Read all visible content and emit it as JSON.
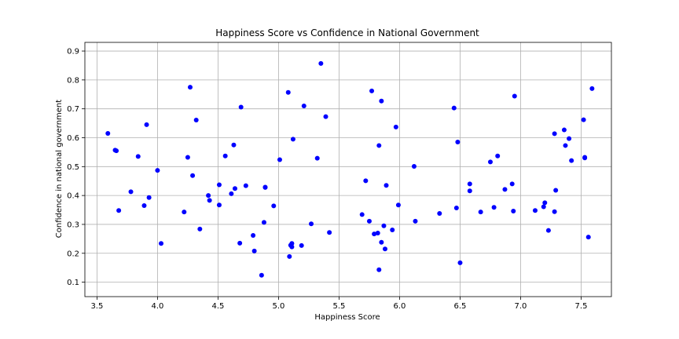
{
  "chart_data": {
    "type": "scatter",
    "title": "Happiness Score vs Confidence in National Government",
    "xlabel": "Happiness Score",
    "ylabel": "Confidence in national government",
    "xlim": [
      3.4,
      7.75
    ],
    "ylim": [
      0.05,
      0.93
    ],
    "xticks": [
      3.5,
      4.0,
      4.5,
      5.0,
      5.5,
      6.0,
      6.5,
      7.0,
      7.5
    ],
    "xtick_labels": [
      "3.5",
      "4.0",
      "4.5",
      "5.0",
      "5.5",
      "6.0",
      "6.5",
      "7.0",
      "7.5"
    ],
    "yticks": [
      0.1,
      0.2,
      0.3,
      0.4,
      0.5,
      0.6,
      0.7,
      0.8,
      0.9
    ],
    "ytick_labels": [
      "0.1",
      "0.2",
      "0.3",
      "0.4",
      "0.5",
      "0.6",
      "0.7",
      "0.8",
      "0.9"
    ],
    "grid": true,
    "marker_color": "#0000ff",
    "points": [
      [
        3.59,
        0.615
      ],
      [
        3.65,
        0.557
      ],
      [
        3.66,
        0.555
      ],
      [
        3.68,
        0.348
      ],
      [
        3.78,
        0.413
      ],
      [
        3.84,
        0.535
      ],
      [
        3.89,
        0.365
      ],
      [
        3.91,
        0.645
      ],
      [
        3.93,
        0.393
      ],
      [
        4.0,
        0.487
      ],
      [
        4.03,
        0.234
      ],
      [
        4.22,
        0.343
      ],
      [
        4.25,
        0.532
      ],
      [
        4.27,
        0.775
      ],
      [
        4.29,
        0.469
      ],
      [
        4.32,
        0.661
      ],
      [
        4.35,
        0.284
      ],
      [
        4.42,
        0.4
      ],
      [
        4.43,
        0.383
      ],
      [
        4.51,
        0.437
      ],
      [
        4.51,
        0.367
      ],
      [
        4.56,
        0.537
      ],
      [
        4.61,
        0.406
      ],
      [
        4.63,
        0.575
      ],
      [
        4.64,
        0.424
      ],
      [
        4.68,
        0.235
      ],
      [
        4.69,
        0.706
      ],
      [
        4.73,
        0.434
      ],
      [
        4.79,
        0.262
      ],
      [
        4.8,
        0.208
      ],
      [
        4.86,
        0.124
      ],
      [
        4.88,
        0.307
      ],
      [
        4.89,
        0.429
      ],
      [
        4.89,
        0.428
      ],
      [
        4.96,
        0.364
      ],
      [
        5.01,
        0.524
      ],
      [
        5.08,
        0.757
      ],
      [
        5.09,
        0.189
      ],
      [
        5.1,
        0.228
      ],
      [
        5.11,
        0.234
      ],
      [
        5.11,
        0.222
      ],
      [
        5.12,
        0.595
      ],
      [
        5.19,
        0.227
      ],
      [
        5.21,
        0.71
      ],
      [
        5.27,
        0.302
      ],
      [
        5.32,
        0.529
      ],
      [
        5.35,
        0.857
      ],
      [
        5.39,
        0.673
      ],
      [
        5.42,
        0.272
      ],
      [
        5.69,
        0.334
      ],
      [
        5.72,
        0.451
      ],
      [
        5.75,
        0.311
      ],
      [
        5.77,
        0.762
      ],
      [
        5.79,
        0.267
      ],
      [
        5.82,
        0.27
      ],
      [
        5.83,
        0.573
      ],
      [
        5.83,
        0.143
      ],
      [
        5.85,
        0.238
      ],
      [
        5.85,
        0.727
      ],
      [
        5.87,
        0.295
      ],
      [
        5.88,
        0.215
      ],
      [
        5.89,
        0.435
      ],
      [
        5.94,
        0.281
      ],
      [
        5.97,
        0.637
      ],
      [
        5.99,
        0.367
      ],
      [
        6.12,
        0.501
      ],
      [
        6.13,
        0.311
      ],
      [
        6.33,
        0.338
      ],
      [
        6.45,
        0.703
      ],
      [
        6.47,
        0.357
      ],
      [
        6.48,
        0.585
      ],
      [
        6.5,
        0.167
      ],
      [
        6.58,
        0.44
      ],
      [
        6.58,
        0.416
      ],
      [
        6.67,
        0.343
      ],
      [
        6.75,
        0.516
      ],
      [
        6.78,
        0.359
      ],
      [
        6.81,
        0.537
      ],
      [
        6.87,
        0.421
      ],
      [
        6.93,
        0.44
      ],
      [
        6.94,
        0.346
      ],
      [
        6.95,
        0.744
      ],
      [
        7.12,
        0.348
      ],
      [
        7.19,
        0.361
      ],
      [
        7.2,
        0.375
      ],
      [
        7.23,
        0.279
      ],
      [
        7.28,
        0.614
      ],
      [
        7.28,
        0.344
      ],
      [
        7.29,
        0.418
      ],
      [
        7.36,
        0.627
      ],
      [
        7.37,
        0.573
      ],
      [
        7.4,
        0.597
      ],
      [
        7.42,
        0.521
      ],
      [
        7.52,
        0.662
      ],
      [
        7.53,
        0.532
      ],
      [
        7.53,
        0.53
      ],
      [
        7.56,
        0.256
      ],
      [
        7.59,
        0.77
      ]
    ]
  }
}
